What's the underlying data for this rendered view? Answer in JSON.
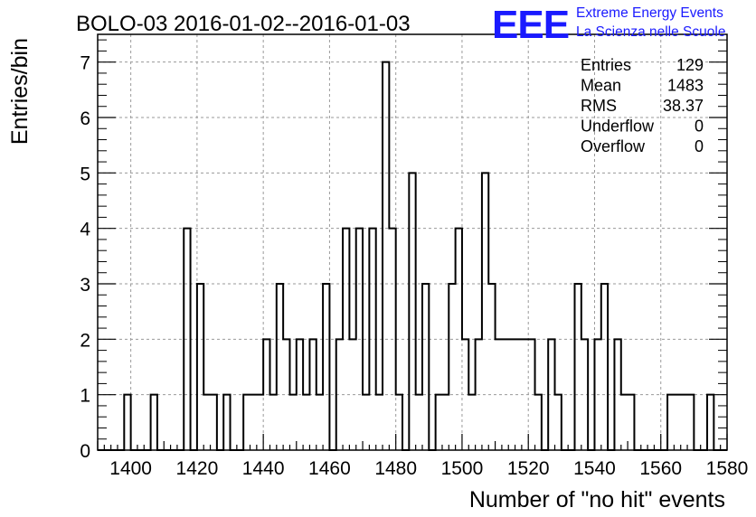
{
  "header": {
    "title": "BOLO-03 2016-01-02--2016-01-03"
  },
  "logo": {
    "mark": "EEE",
    "line1": "Extreme Energy Events",
    "line2": "La Scienza nelle Scuole",
    "color": "#1a1aff"
  },
  "stats": [
    {
      "label": "Entries",
      "value": "129"
    },
    {
      "label": "Mean",
      "value": "1483"
    },
    {
      "label": "RMS",
      "value": "38.37"
    },
    {
      "label": "Underflow",
      "value": "0"
    },
    {
      "label": "Overflow",
      "value": "0"
    }
  ],
  "chart_data": {
    "type": "bar",
    "histogram": true,
    "xlabel": "Number of \"no hit\" events",
    "ylabel": "Entries/bin",
    "xlim": [
      1390,
      1580
    ],
    "ylim": [
      0,
      7.5
    ],
    "x_ticks": [
      1400,
      1420,
      1440,
      1460,
      1480,
      1500,
      1520,
      1540,
      1560,
      1580
    ],
    "y_ticks": [
      0,
      1,
      2,
      3,
      4,
      5,
      6,
      7
    ],
    "grid": true,
    "bin_width": 2,
    "bins_start": 1390,
    "values": [
      0,
      0,
      0,
      0,
      1,
      0,
      0,
      0,
      1,
      0,
      0,
      0,
      0,
      4,
      0,
      3,
      1,
      1,
      0,
      1,
      0,
      0,
      1,
      1,
      1,
      2,
      1,
      3,
      2,
      1,
      2,
      1,
      2,
      1,
      3,
      0,
      2,
      4,
      2,
      4,
      1,
      4,
      1,
      7,
      4,
      1,
      0,
      5,
      1,
      3,
      0,
      1,
      1,
      3,
      4,
      2,
      1,
      2,
      5,
      3,
      2,
      2,
      2,
      2,
      2,
      2,
      1,
      0,
      2,
      1,
      0,
      0,
      3,
      2,
      0,
      2,
      3,
      0,
      2,
      1,
      1,
      0,
      0,
      0,
      0,
      0,
      1,
      1,
      1,
      1,
      0,
      0,
      1,
      0,
      0
    ]
  }
}
